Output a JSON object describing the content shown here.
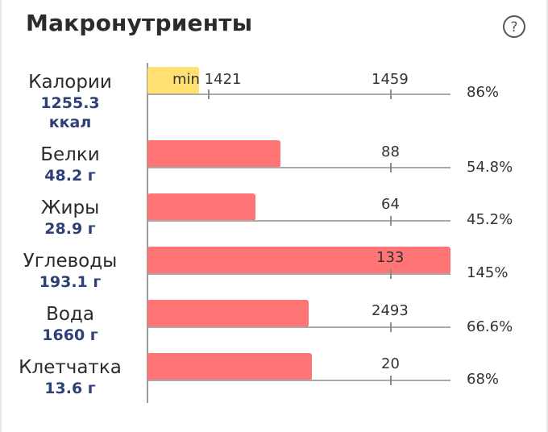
{
  "header": {
    "title": "Макронутриенты",
    "help_icon": "question-circle-icon"
  },
  "rows": [
    {
      "name": "Калории",
      "value": "1255.3",
      "unit": "ккал",
      "min_label": "min 1421",
      "target": "1459",
      "percent": "86%",
      "bar_fill_of_axis": 0.17,
      "bar_color": "#ffe070"
    },
    {
      "name": "Белки",
      "value": "48.2 г",
      "target": "88",
      "percent": "54.8%",
      "bar_fill_of_axis": 0.44,
      "bar_color": "#ff7474"
    },
    {
      "name": "Жиры",
      "value": "28.9 г",
      "target": "64",
      "percent": "45.2%",
      "bar_fill_of_axis": 0.36,
      "bar_color": "#ff7474"
    },
    {
      "name": "Углеводы",
      "value": "193.1 г",
      "target": "133",
      "percent": "145%",
      "bar_fill_of_axis": 1.0,
      "bar_color": "#ff7474"
    },
    {
      "name": "Вода",
      "value": "1660 г",
      "target": "2493",
      "percent": "66.6%",
      "bar_fill_of_axis": 0.53,
      "bar_color": "#ff7474"
    },
    {
      "name": "Клетчатка",
      "value": "13.6 г",
      "target": "20",
      "percent": "68%",
      "bar_fill_of_axis": 0.54,
      "bar_color": "#ff7474"
    }
  ],
  "colors": {
    "over_under": "#ff7474",
    "calories": "#ffe070",
    "value_text": "#2f3f78"
  }
}
